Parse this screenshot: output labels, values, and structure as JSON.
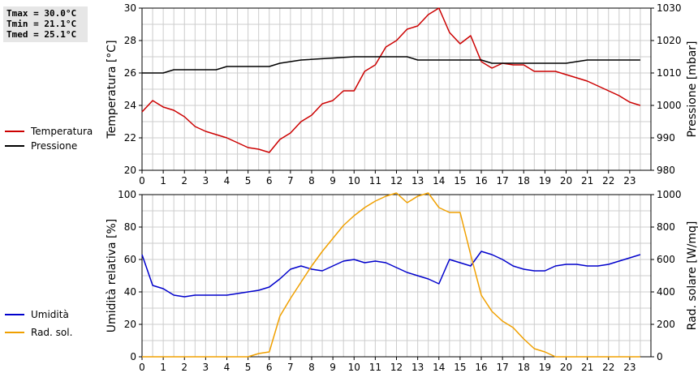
{
  "stats": {
    "tmax": "Tmax = 30.0°C",
    "tmin": "Tmin = 21.1°C",
    "tmed": "Tmed = 25.1°C"
  },
  "colors": {
    "temperatura": "#cc0000",
    "pressione": "#000000",
    "umidita": "#0000cc",
    "radsol": "#f0a000",
    "grid": "#cccccc"
  },
  "chart_data": [
    {
      "type": "line",
      "xlim": [
        0,
        24
      ],
      "x_ticks": [
        0,
        1,
        2,
        3,
        4,
        5,
        6,
        7,
        8,
        9,
        10,
        11,
        12,
        13,
        14,
        15,
        16,
        17,
        18,
        19,
        20,
        21,
        22,
        23
      ],
      "ylabel": "Temperatura [°C]",
      "ylim": [
        20,
        30
      ],
      "y_ticks": [
        20,
        22,
        24,
        26,
        28,
        30
      ],
      "y2label": "Pressione [mbar]",
      "y2lim": [
        980,
        1030
      ],
      "y2_ticks": [
        980,
        990,
        1000,
        1010,
        1020,
        1030
      ],
      "grid": true,
      "legend": "left",
      "series": [
        {
          "name": "Temperatura",
          "axis": "left",
          "x": [
            0,
            0.5,
            1,
            1.5,
            2,
            2.5,
            3,
            3.5,
            4,
            4.5,
            5,
            5.5,
            6,
            6.5,
            7,
            7.5,
            8,
            8.5,
            9,
            9.5,
            10,
            10.5,
            11,
            11.5,
            12,
            12.5,
            13,
            13.5,
            14,
            14.5,
            15,
            15.5,
            16,
            16.5,
            17,
            17.5,
            18,
            18.5,
            19,
            19.5,
            20,
            20.5,
            21,
            21.5,
            22,
            22.5,
            23,
            23.5
          ],
          "y": [
            23.6,
            24.3,
            23.9,
            23.7,
            23.3,
            22.7,
            22.4,
            22.2,
            22.0,
            21.7,
            21.4,
            21.3,
            21.1,
            21.9,
            22.3,
            23.0,
            23.4,
            24.1,
            24.3,
            24.9,
            24.9,
            26.1,
            26.5,
            27.6,
            28.0,
            28.7,
            28.9,
            29.6,
            30.0,
            28.5,
            27.8,
            28.3,
            26.7,
            26.3,
            26.6,
            26.5,
            26.5,
            26.1,
            26.1,
            26.1,
            25.9,
            25.7,
            25.5,
            25.2,
            24.9,
            24.6,
            24.2,
            24.0
          ]
        },
        {
          "name": "Pressione",
          "axis": "right",
          "x": [
            0,
            1,
            1.5,
            3.5,
            4,
            6,
            6.5,
            7.5,
            10,
            10.5,
            11,
            12.5,
            13,
            16,
            16.5,
            20,
            21,
            23.5
          ],
          "y": [
            1010,
            1010,
            1011,
            1011,
            1012,
            1012,
            1013,
            1014,
            1015,
            1015,
            1015,
            1015,
            1014,
            1014,
            1013,
            1013,
            1014,
            1014
          ]
        }
      ]
    },
    {
      "type": "line",
      "xlim": [
        0,
        24
      ],
      "x_ticks": [
        0,
        1,
        2,
        3,
        4,
        5,
        6,
        7,
        8,
        9,
        10,
        11,
        12,
        13,
        14,
        15,
        16,
        17,
        18,
        19,
        20,
        21,
        22,
        23
      ],
      "ylabel": "Umidità relativa [%]",
      "ylim": [
        0,
        100
      ],
      "y_ticks": [
        0,
        20,
        40,
        60,
        80,
        100
      ],
      "y2label": "Rad. solare [W/mq]",
      "y2lim": [
        0,
        1000
      ],
      "y2_ticks": [
        0,
        200,
        400,
        600,
        800,
        1000
      ],
      "grid": true,
      "legend": "left",
      "series": [
        {
          "name": "Umidità",
          "axis": "left",
          "x": [
            0,
            0.5,
            1,
            1.5,
            2,
            2.5,
            3,
            3.5,
            4,
            4.5,
            5,
            5.5,
            6,
            6.5,
            7,
            7.5,
            8,
            8.5,
            9,
            9.5,
            10,
            10.5,
            11,
            11.5,
            12,
            12.5,
            13,
            13.5,
            14,
            14.5,
            15,
            15.5,
            16,
            16.5,
            17,
            17.5,
            18,
            18.5,
            19,
            19.5,
            20,
            20.5,
            21,
            21.5,
            22,
            22.5,
            23,
            23.5
          ],
          "y": [
            63,
            44,
            42,
            38,
            37,
            38,
            38,
            38,
            38,
            39,
            40,
            41,
            43,
            48,
            54,
            56,
            54,
            53,
            56,
            59,
            60,
            58,
            59,
            58,
            55,
            52,
            50,
            48,
            45,
            60,
            58,
            56,
            65,
            63,
            60,
            56,
            54,
            53,
            53,
            56,
            57,
            57,
            56,
            56,
            57,
            59,
            61,
            63
          ]
        },
        {
          "name": "Rad. sol.",
          "axis": "right",
          "x": [
            0,
            0.5,
            1,
            1.5,
            2,
            2.5,
            3,
            3.5,
            4,
            4.5,
            5,
            5.5,
            6,
            6.5,
            7,
            7.5,
            8,
            8.5,
            9,
            9.5,
            10,
            10.5,
            11,
            11.5,
            12,
            12.5,
            13,
            13.5,
            14,
            14.5,
            15,
            15.5,
            16,
            16.5,
            17,
            17.5,
            18,
            18.5,
            19,
            19.5,
            20,
            20.5,
            21,
            21.5,
            22,
            22.5,
            23,
            23.5
          ],
          "y": [
            0,
            0,
            0,
            0,
            0,
            0,
            0,
            0,
            0,
            0,
            0,
            20,
            30,
            250,
            360,
            460,
            560,
            650,
            730,
            810,
            870,
            920,
            960,
            990,
            1010,
            950,
            990,
            1010,
            920,
            890,
            890,
            630,
            380,
            280,
            220,
            180,
            110,
            50,
            30,
            0,
            0,
            0,
            0,
            0,
            0,
            0,
            0,
            0
          ]
        }
      ]
    }
  ]
}
